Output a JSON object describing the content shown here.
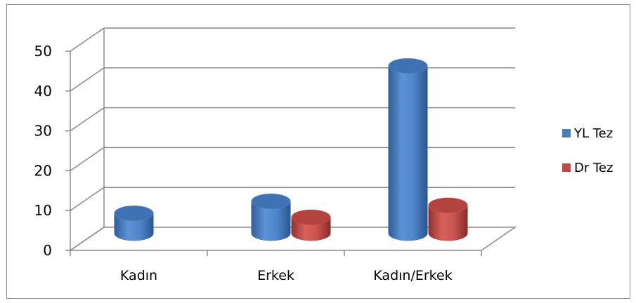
{
  "chart_data": {
    "type": "bar",
    "title": "",
    "xlabel": "",
    "ylabel": "",
    "categories": [
      "Kadın",
      "Erkek",
      "Kadın/Erkek"
    ],
    "series": [
      {
        "name": "YL Tez",
        "values": [
          5,
          8,
          42
        ],
        "color": "#4a7ebb"
      },
      {
        "name": "Dr Tez",
        "values": [
          0,
          4,
          7
        ],
        "color": "#be4b48"
      }
    ],
    "ylim": [
      0,
      50
    ],
    "yticks": [
      0,
      10,
      20,
      30,
      40,
      50
    ],
    "grid": true,
    "legend_position": "right",
    "style": "3d-cylinder"
  }
}
